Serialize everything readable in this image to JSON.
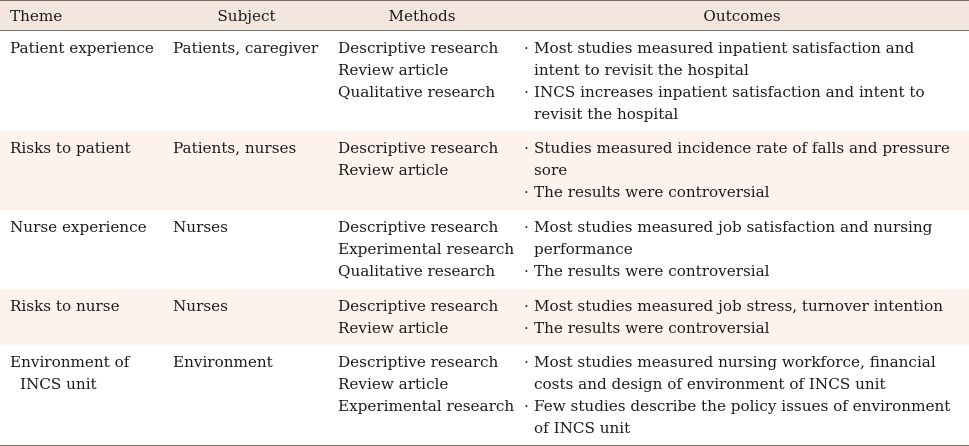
{
  "headers": {
    "theme": "Theme",
    "subject": "Subject",
    "methods": "Methods",
    "outcomes": "Outcomes"
  },
  "bullet_symbol": "·",
  "rows": [
    {
      "theme": [
        "Patient experience"
      ],
      "subject": "Patients, caregiver",
      "methods": [
        "Descriptive research",
        "Review article",
        "Qualitative research"
      ],
      "outcomes": [
        "Most studies measured inpatient satisfaction and intent to revisit the hospital",
        "INCS increases inpatient satisfaction and intent to revisit the hospital"
      ]
    },
    {
      "theme": [
        "Risks to patient"
      ],
      "subject": "Patients, nurses",
      "methods": [
        "Descriptive research",
        "Review article"
      ],
      "outcomes": [
        "Studies measured incidence rate of falls and pressure sore",
        "The results were controversial"
      ]
    },
    {
      "theme": [
        "Nurse experience"
      ],
      "subject": "Nurses",
      "methods": [
        "Descriptive research",
        "Experimental research",
        "Qualitative research"
      ],
      "outcomes": [
        "Most studies measured job satisfaction and nursing performance",
        "The results were controversial"
      ]
    },
    {
      "theme": [
        "Risks to nurse"
      ],
      "subject": "Nurses",
      "methods": [
        "Descriptive research",
        "Review article"
      ],
      "outcomes": [
        "Most studies measured job stress, turnover intention",
        "The results were controversial"
      ]
    },
    {
      "theme": [
        "Environment of",
        "INCS unit"
      ],
      "subject": "Environment",
      "methods": [
        "Descriptive research",
        "Review article",
        "Experimental research"
      ],
      "outcomes": [
        "Most studies measured nursing workforce, financial costs and design of environment of INCS unit",
        "Few studies describe the policy issues of environment of INCS unit"
      ]
    }
  ]
}
